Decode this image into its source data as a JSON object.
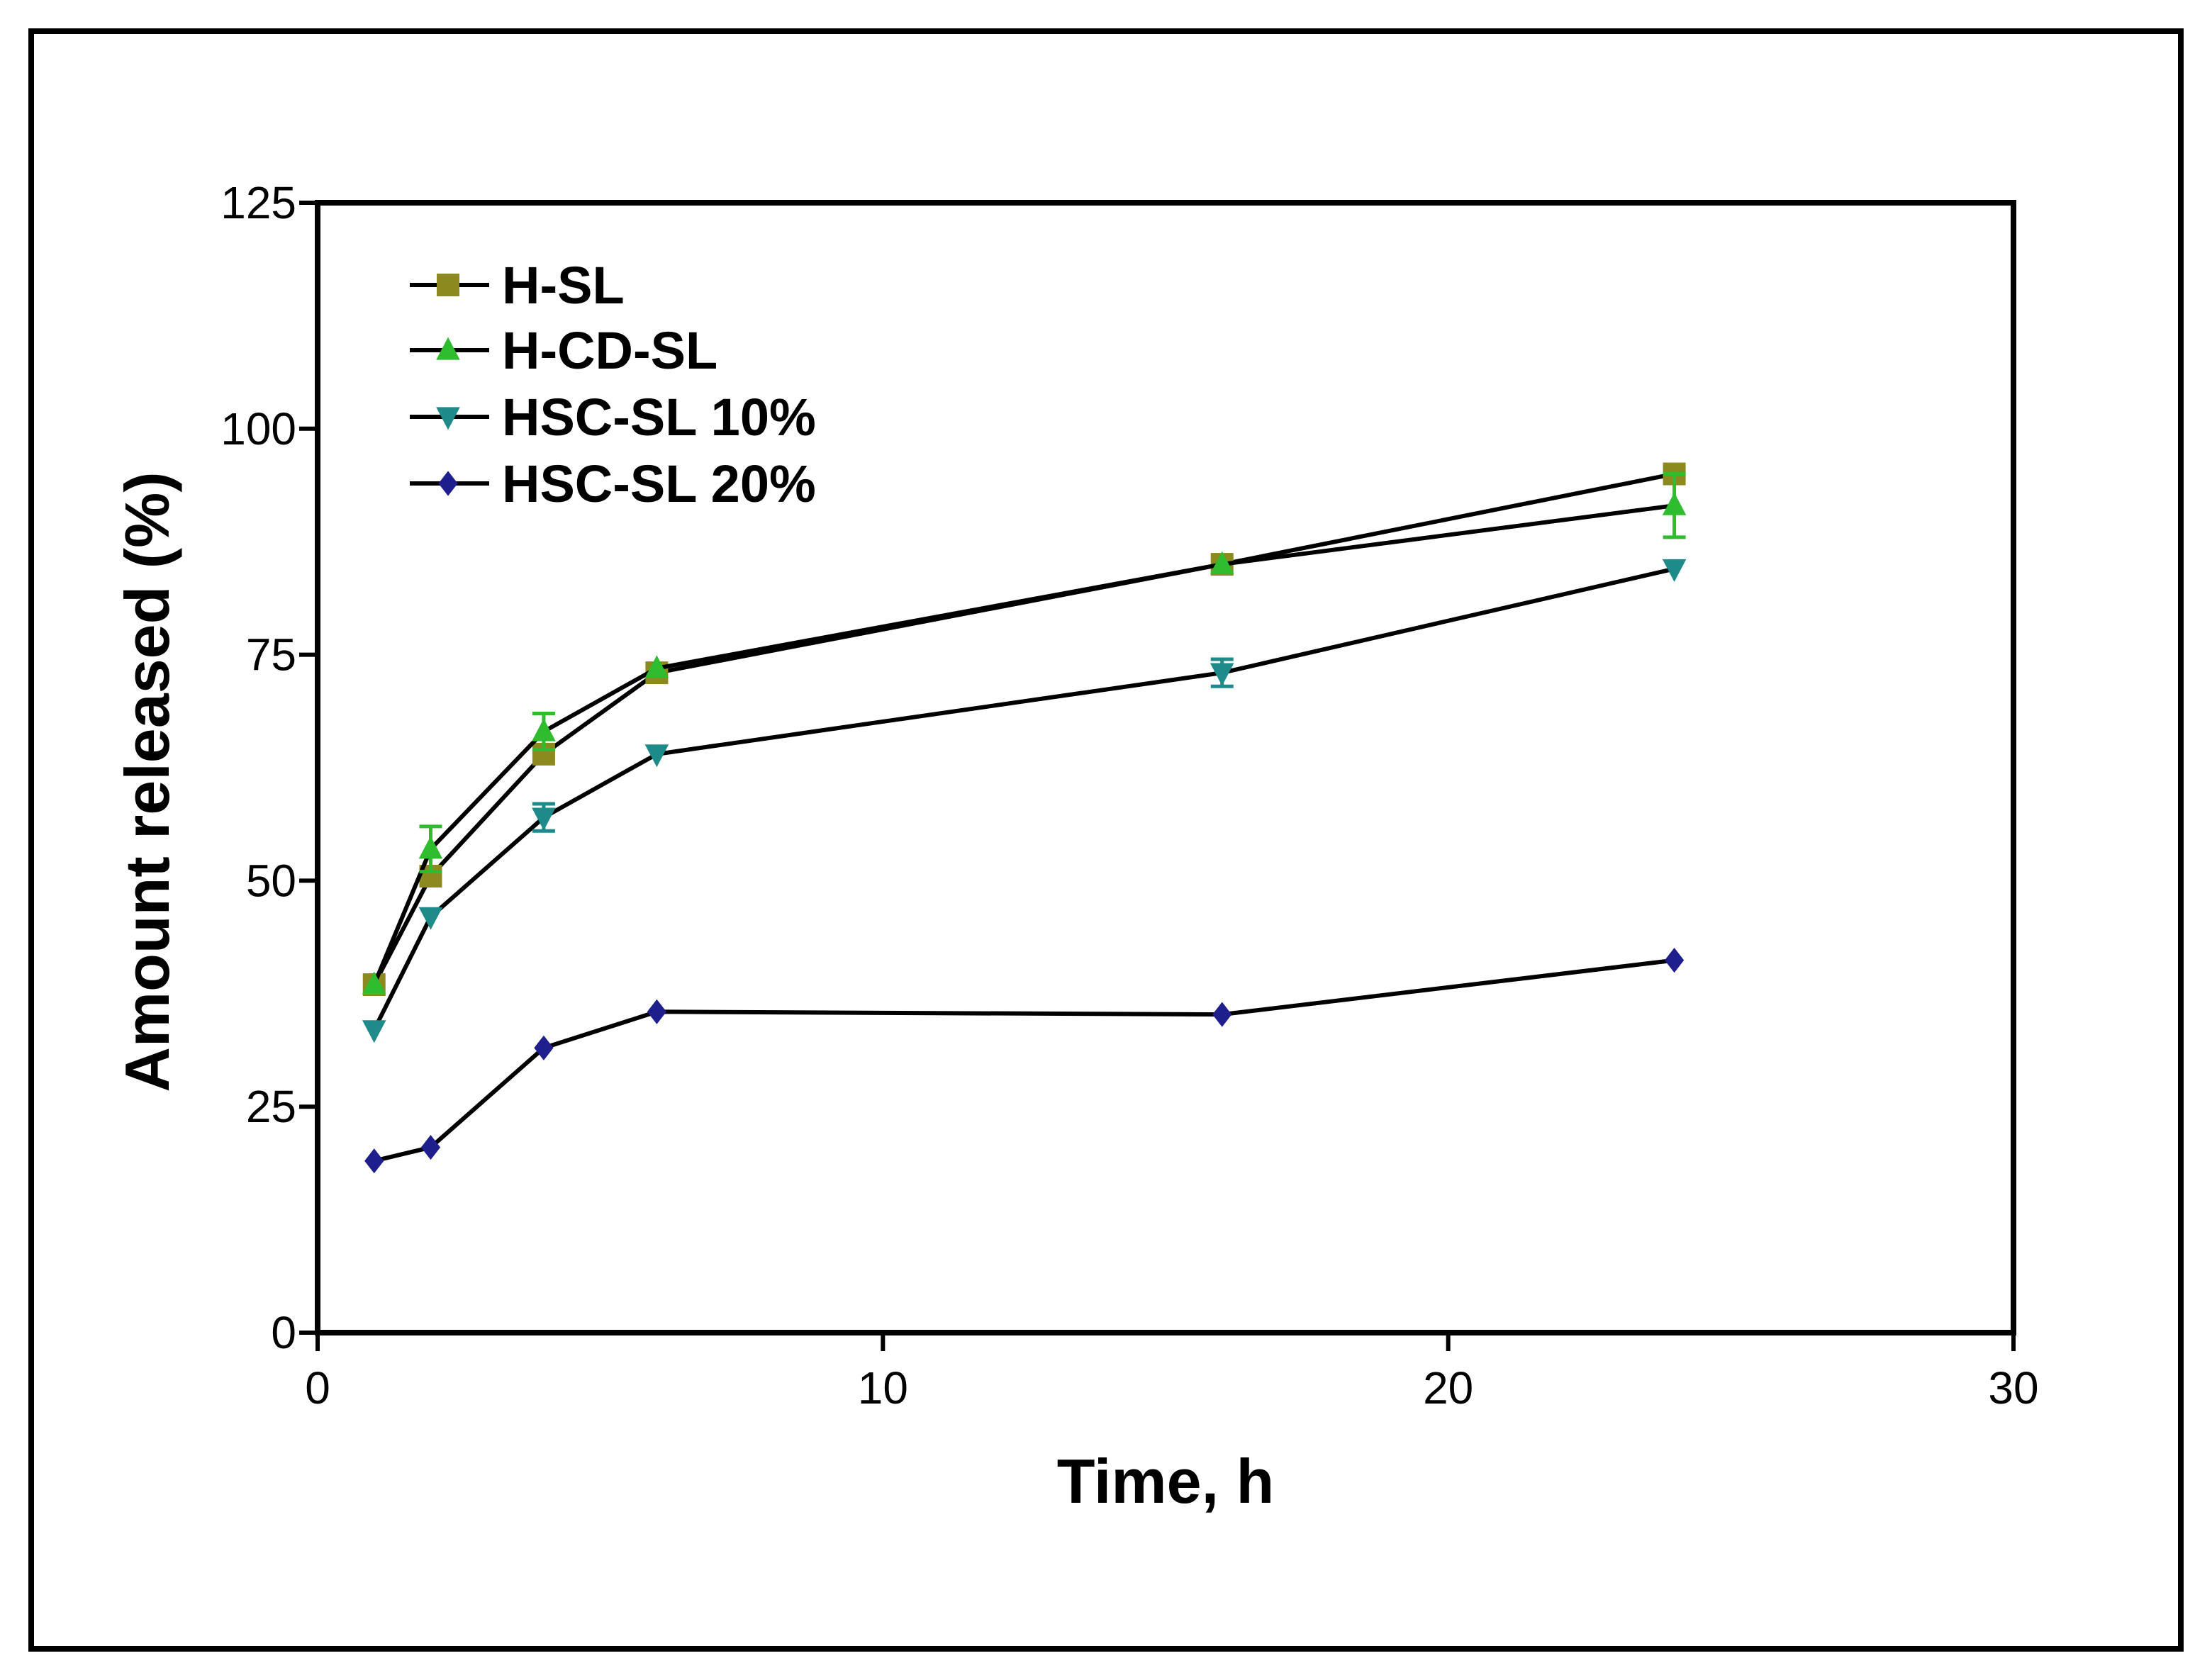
{
  "chart_data": {
    "type": "line",
    "title": "",
    "xlabel": "Time, h",
    "ylabel": "Amount released (%)",
    "xlim": [
      0,
      30
    ],
    "ylim": [
      0,
      125
    ],
    "xticks": [
      0,
      10,
      20,
      30
    ],
    "yticks": [
      0,
      25,
      50,
      75,
      100,
      125
    ],
    "grid": false,
    "legend_position": "top-left",
    "x": [
      1,
      2,
      4,
      6,
      16,
      24
    ],
    "series": [
      {
        "name": "H-SL",
        "marker": "square",
        "color": "#8c8a1e",
        "values": [
          38.5,
          50.5,
          64.0,
          73.0,
          85.0,
          95.0
        ],
        "errors": [
          0,
          0,
          0,
          0,
          0,
          0
        ]
      },
      {
        "name": "H-CD-SL",
        "marker": "triangle-up",
        "color": "#2fbd2f",
        "values": [
          38.5,
          53.5,
          66.5,
          73.5,
          85.0,
          91.5
        ],
        "errors": [
          0,
          2.5,
          2.0,
          0,
          0,
          3.5
        ]
      },
      {
        "name": "HSC-SL 10%",
        "marker": "triangle-down",
        "color": "#1f8a8a",
        "values": [
          33.5,
          46.0,
          57.0,
          64.0,
          73.0,
          84.5
        ],
        "errors": [
          0,
          0,
          1.5,
          0,
          1.5,
          0
        ]
      },
      {
        "name": "HSC-SL 20%",
        "marker": "diamond",
        "color": "#1e1e8c",
        "values": [
          19.0,
          20.5,
          31.5,
          35.5,
          35.2,
          41.2
        ],
        "errors": [
          0,
          0,
          0,
          0,
          0,
          0
        ]
      }
    ]
  }
}
